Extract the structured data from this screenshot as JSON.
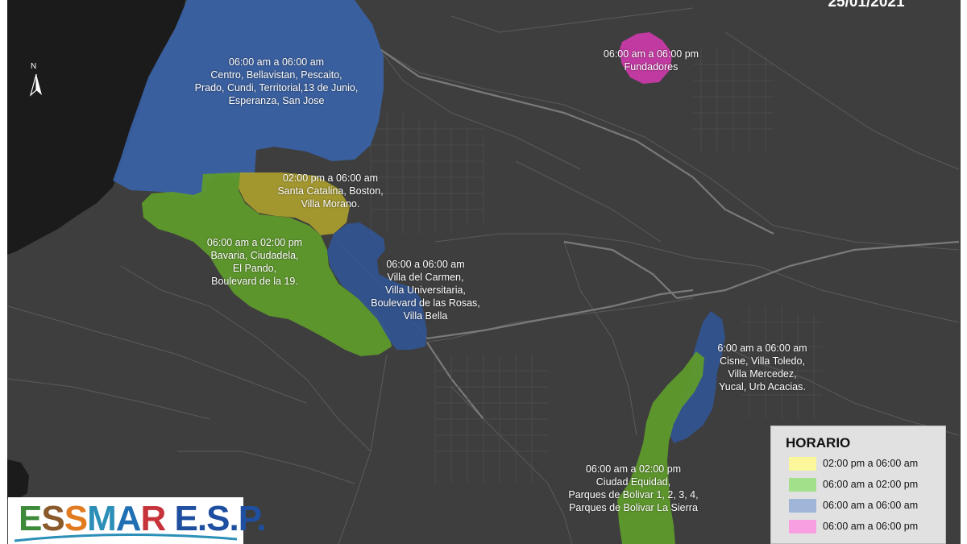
{
  "date": "25/01/2021",
  "north_label": "N",
  "zones": [
    {
      "id": "centro",
      "schedule": "06:00 am a 06:00 am",
      "lines": [
        "Centro, Bellavistan, Pescaito,",
        "Prado, Cundi, Territorial,13 de Junio,",
        "Esperanza, San Jose"
      ],
      "color": "#3a62a6"
    },
    {
      "id": "fundadores",
      "schedule": "06:00 am a 06:00 pm",
      "lines": [
        "Fundadores"
      ],
      "color": "#c83aa6"
    },
    {
      "id": "santa-catalina",
      "schedule": "02:00 pm a 06:00 am",
      "lines": [
        "Santa Catalina, Boston,",
        "Villa Morano."
      ],
      "color": "#a89b2e"
    },
    {
      "id": "bavaria",
      "schedule": "06:00 am a 02:00 pm",
      "lines": [
        "Bavaria, Ciudadela,",
        "El Pando,",
        "Boulevard de la 19."
      ],
      "color": "#5f9a2c"
    },
    {
      "id": "villa-del-carmen",
      "schedule": "06:00 a 06:00 am",
      "lines": [
        "Villa del Carmen,",
        "Villa Universitaria,",
        "Boulevard de las Rosas,",
        "Villa Bella"
      ],
      "color": "#31538f"
    },
    {
      "id": "cisne",
      "schedule": "6:00 am a 06:00 am",
      "lines": [
        "Cisne, Villa Toledo,",
        "Villa Mercedez,",
        "Yucal, Urb Acacias."
      ],
      "color": "#31538f"
    },
    {
      "id": "ciudad-equidad",
      "schedule": "06:00 am a 02:00 pm",
      "lines": [
        "Ciudad Equidad,",
        "Parques de Bolivar 1, 2, 3, 4,",
        "Parques de Bolivar La Sierra"
      ],
      "color": "#5f9a2c"
    }
  ],
  "legend": {
    "title": "HORARIO",
    "items": [
      {
        "label": "02:00 pm a 06:00 am",
        "color": "#fbf79a"
      },
      {
        "label": "06:00 am a 02:00 pm",
        "color": "#a2e08a"
      },
      {
        "label": "06:00 am a 06:00 am",
        "color": "#9fb6d9"
      },
      {
        "label": "06:00 am a 06:00 pm",
        "color": "#f79fe1"
      }
    ]
  },
  "logo": {
    "text": "ESSMAR E.S.P.",
    "letter_colors": [
      "#3c8a3a",
      "#8a5a2b",
      "#e07b1f",
      "#2c8fb8",
      "#1f6fb2",
      "#c7333a",
      "#1f4fa0",
      "#1f4fa0",
      "#1f4fa0",
      "#1f4fa0",
      "#1f4fa0",
      "#1f4fa0",
      "#1f4fa0"
    ]
  }
}
